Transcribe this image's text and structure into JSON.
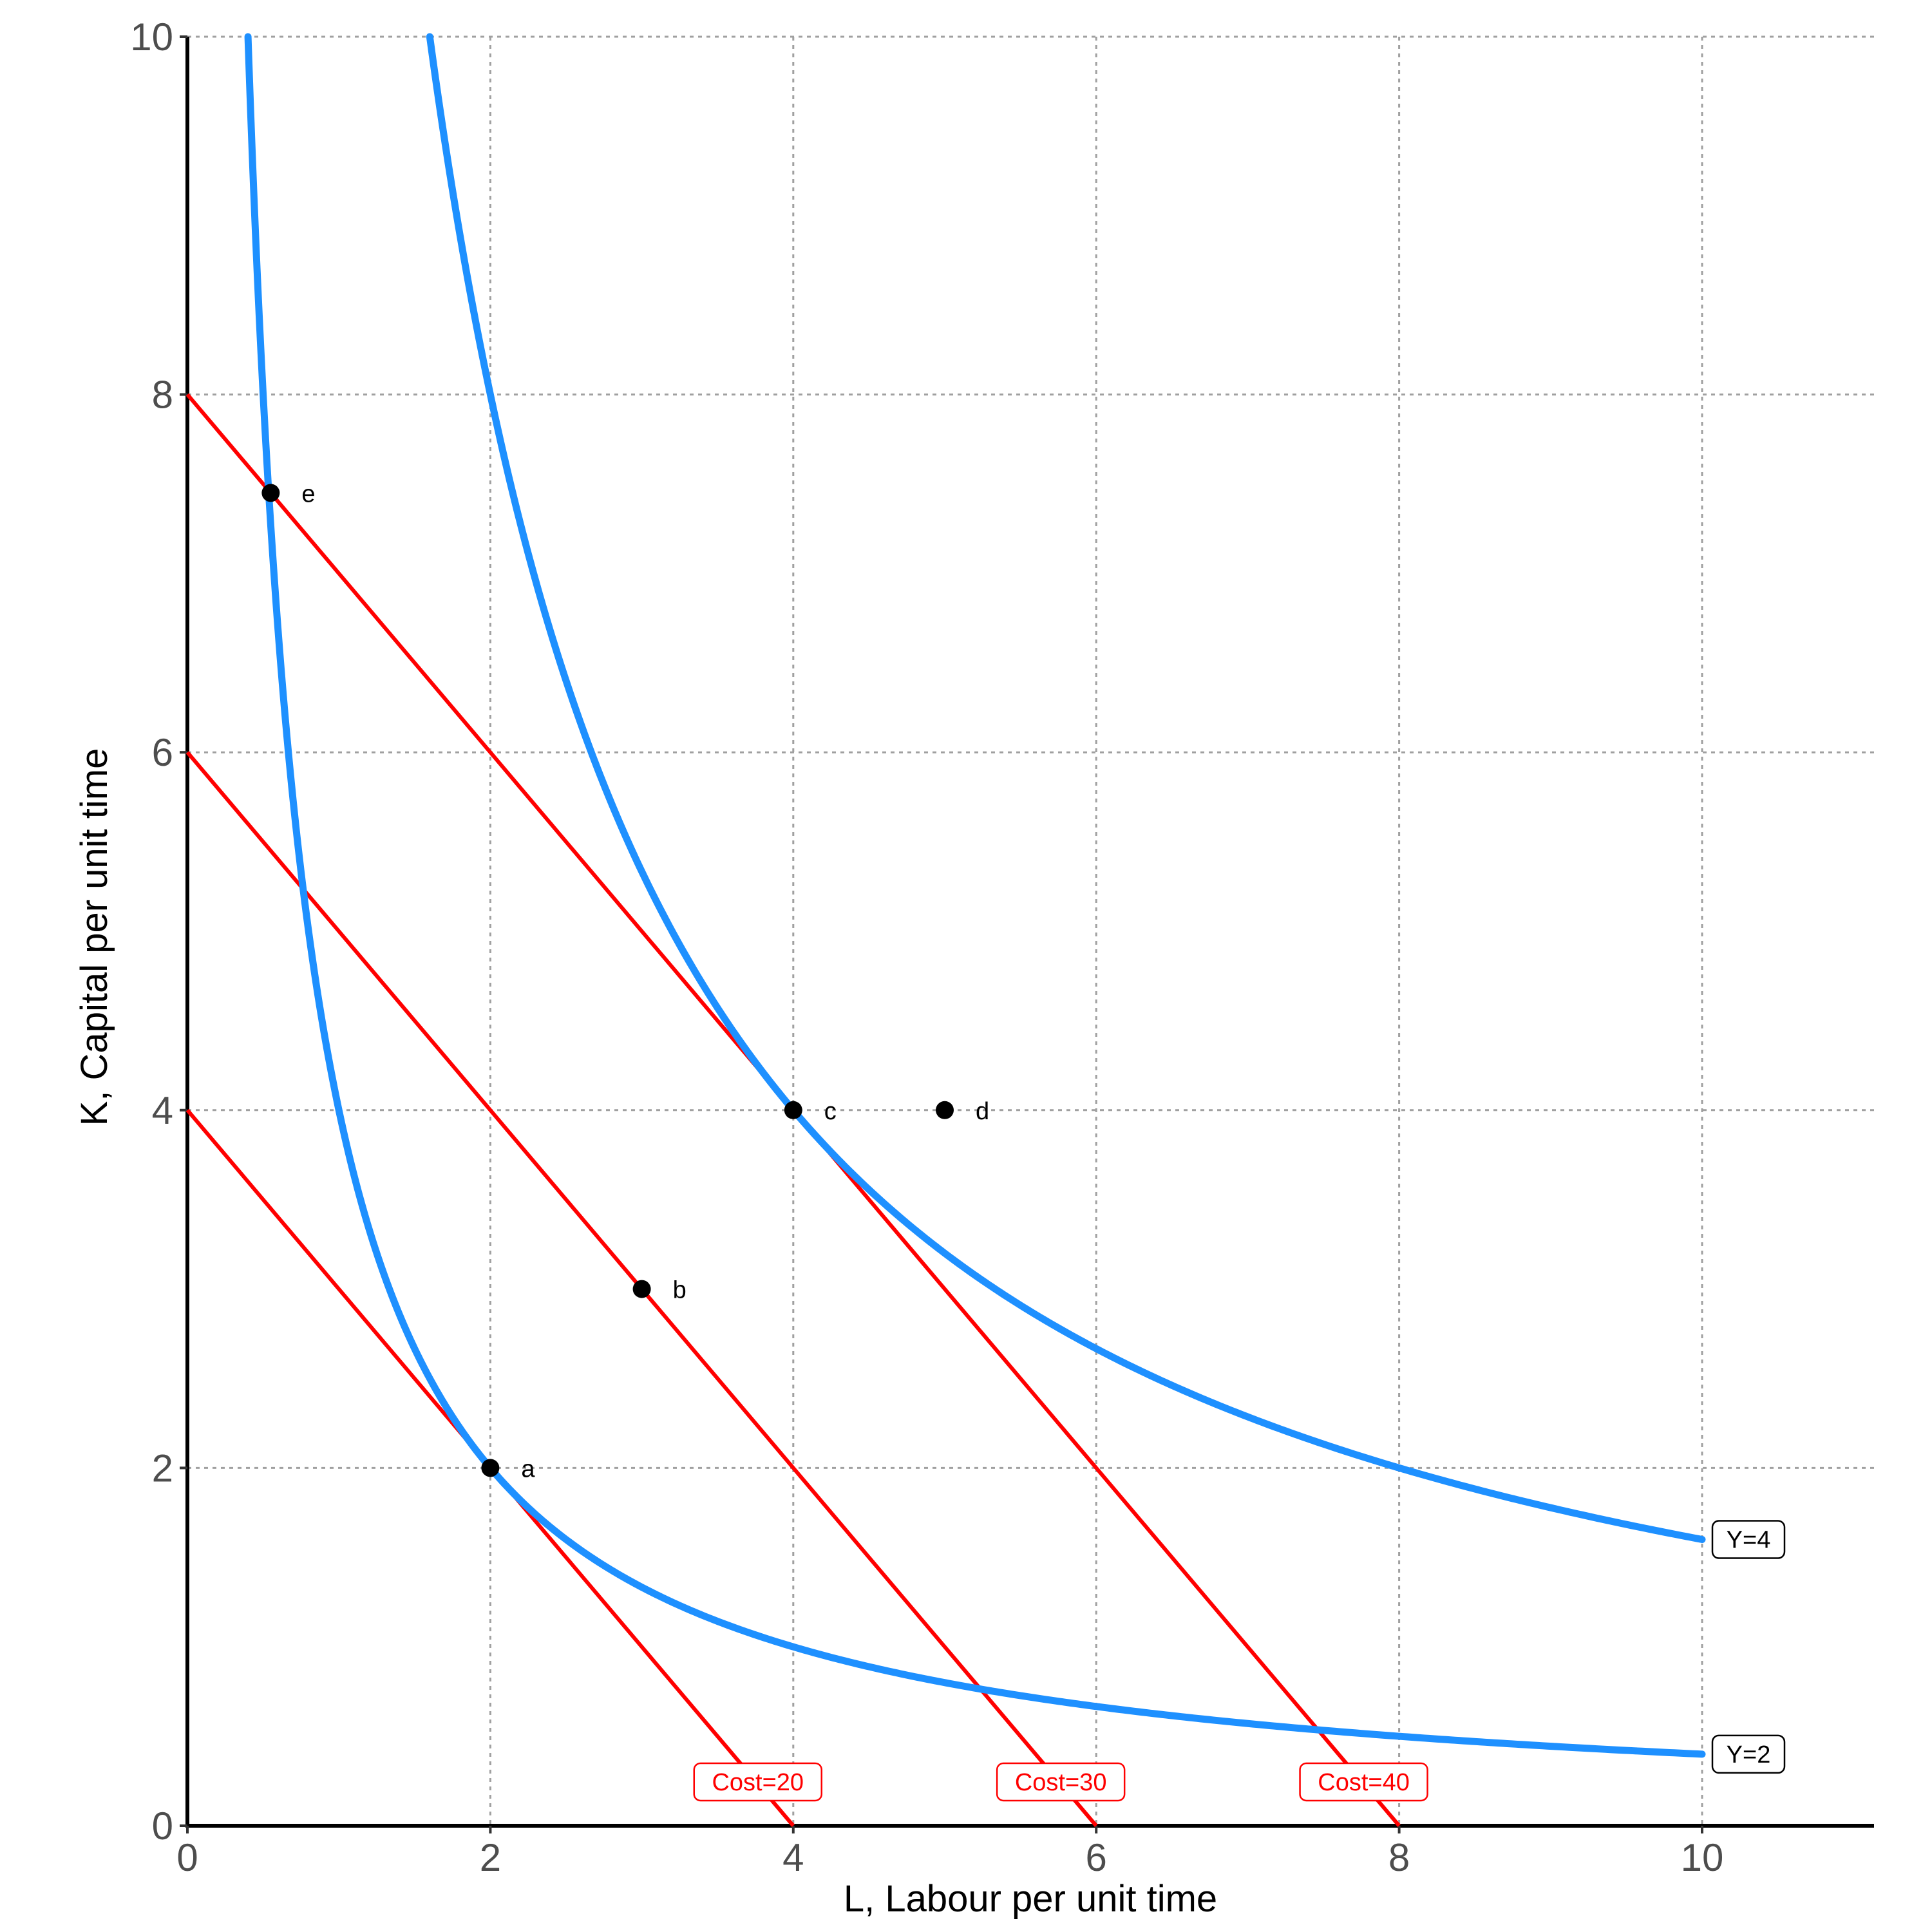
{
  "chart_data": {
    "type": "line",
    "xlabel": "L, Labour per unit time",
    "ylabel": "K, Capital per unit time",
    "xlim": [
      0,
      11
    ],
    "ylim": [
      0,
      10
    ],
    "x_ticks": [
      0,
      2,
      4,
      6,
      8,
      10
    ],
    "y_ticks": [
      0,
      2,
      4,
      6,
      8,
      10
    ],
    "grid": "dotted",
    "isoquants": [
      {
        "label": "Y=2",
        "color": "#1e90ff",
        "product": 4,
        "x_end": 10
      },
      {
        "label": "Y=4",
        "color": "#1e90ff",
        "product": 16,
        "x_end": 10
      }
    ],
    "isocost_lines": [
      {
        "label": "Cost=20",
        "color": "#ff0000",
        "k_intercept": 4,
        "l_intercept": 4
      },
      {
        "label": "Cost=30",
        "color": "#ff0000",
        "k_intercept": 6,
        "l_intercept": 6
      },
      {
        "label": "Cost=40",
        "color": "#ff0000",
        "k_intercept": 8,
        "l_intercept": 8
      }
    ],
    "points": [
      {
        "label": "a",
        "x": 2,
        "y": 2
      },
      {
        "label": "b",
        "x": 3,
        "y": 3
      },
      {
        "label": "c",
        "x": 4,
        "y": 4
      },
      {
        "label": "d",
        "x": 5,
        "y": 4
      },
      {
        "label": "e",
        "x": 0.55,
        "y": 7.45
      }
    ]
  }
}
